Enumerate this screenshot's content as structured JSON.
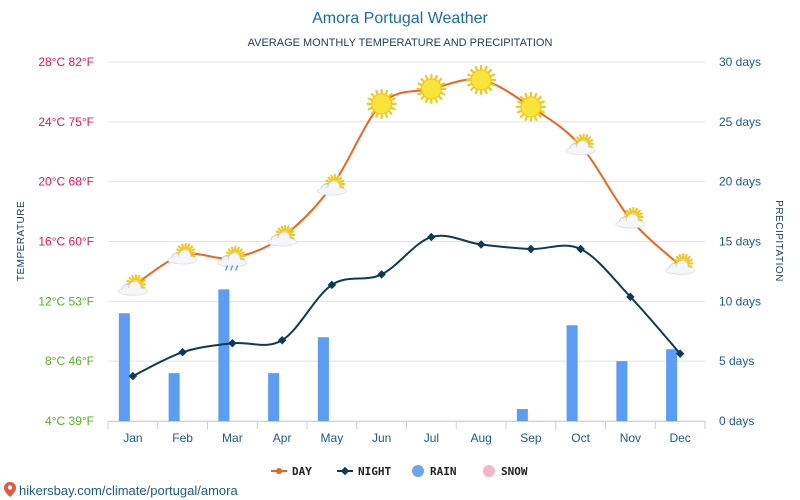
{
  "colors": {
    "title": "#1a6ca8",
    "day": "#f0641e",
    "night": "#0e3a52",
    "rain": "#5b9cf5",
    "snow": "#f7b6c6",
    "grid": "#e4e4e4",
    "axis_right": "#1a5c8a"
  },
  "chart_data": {
    "type": "line",
    "title": "Amora Portugal Weather",
    "subtitle": "AVERAGE MONTHLY TEMPERATURE AND PRECIPITATION",
    "categories": [
      "Jan",
      "Feb",
      "Mar",
      "Apr",
      "May",
      "Jun",
      "Jul",
      "Aug",
      "Sep",
      "Oct",
      "Nov",
      "Dec"
    ],
    "ylabel_left": "TEMPERATURE",
    "ylabel_right": "PRECIPITATION",
    "ylim_left": [
      4,
      28
    ],
    "ylim_right": [
      0,
      30
    ],
    "left_ticks": [
      {
        "value": 28,
        "label": "28°C 82°F",
        "color": "#e8155b"
      },
      {
        "value": 24,
        "label": "24°C 75°F",
        "color": "#e8155b"
      },
      {
        "value": 20,
        "label": "20°C 68°F",
        "color": "#e8155b"
      },
      {
        "value": 16,
        "label": "16°C 60°F",
        "color": "#e8155b"
      },
      {
        "value": 12,
        "label": "12°C 53°F",
        "color": "#55b520"
      },
      {
        "value": 8,
        "label": "8°C 46°F",
        "color": "#55b520"
      },
      {
        "value": 4,
        "label": "4°C 39°F",
        "color": "#55b520"
      }
    ],
    "right_ticks": [
      {
        "value": 30,
        "label": "30 days"
      },
      {
        "value": 25,
        "label": "25 days"
      },
      {
        "value": 20,
        "label": "20 days"
      },
      {
        "value": 15,
        "label": "15 days"
      },
      {
        "value": 10,
        "label": "10 days"
      },
      {
        "value": 5,
        "label": "5 days"
      },
      {
        "value": 0,
        "label": "0 days"
      }
    ],
    "series": [
      {
        "name": "DAY",
        "kind": "line",
        "values": [
          13,
          15.1,
          14.9,
          16.3,
          19.7,
          25.2,
          26.2,
          26.8,
          25.0,
          22.4,
          17.5,
          14.4
        ]
      },
      {
        "name": "NIGHT",
        "kind": "line",
        "values": [
          7.0,
          8.6,
          9.2,
          9.4,
          13.1,
          13.8,
          16.3,
          15.8,
          15.5,
          15.5,
          12.3,
          8.5
        ]
      },
      {
        "name": "RAIN",
        "kind": "bar",
        "values": [
          9,
          4,
          11,
          4,
          7,
          0,
          0,
          0,
          1,
          8,
          5,
          6
        ]
      },
      {
        "name": "SNOW",
        "kind": "bar",
        "values": [
          0,
          0,
          0,
          0,
          0,
          0,
          0,
          0,
          0,
          0,
          0,
          0
        ]
      }
    ],
    "weather_icons": [
      "partly-cloudy",
      "partly-cloudy",
      "partly-cloudy-rain",
      "partly-cloudy",
      "partly-cloudy",
      "sun",
      "sun",
      "sun",
      "sun",
      "partly-cloudy",
      "partly-cloudy",
      "partly-cloudy"
    ]
  },
  "legend": [
    {
      "label": "DAY",
      "type": "line",
      "color": "#f0641e"
    },
    {
      "label": "NIGHT",
      "type": "line",
      "color": "#0e3a52"
    },
    {
      "label": "RAIN",
      "type": "dot",
      "color": "#6aa6ee"
    },
    {
      "label": "SNOW",
      "type": "dot",
      "color": "#f7b6c6"
    }
  ],
  "footer": {
    "credit": "hikersbay.com/climate/portugal/amora",
    "icon": "location-pin-icon"
  }
}
